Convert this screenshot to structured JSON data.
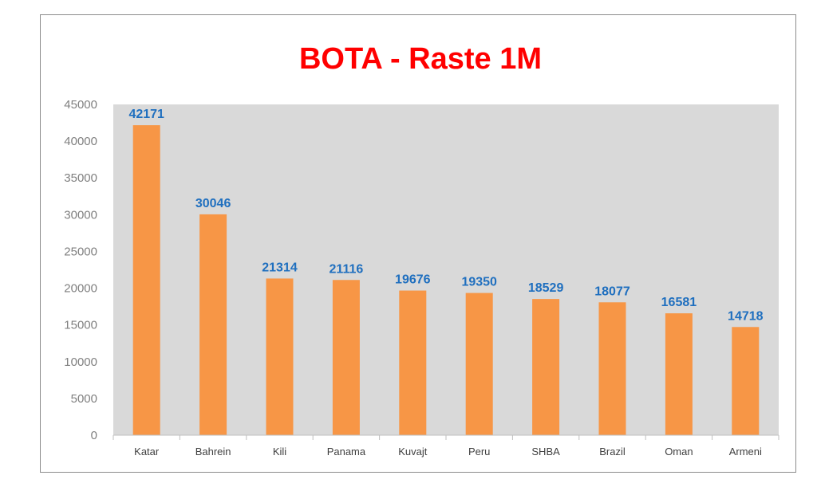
{
  "chart_data": {
    "type": "bar",
    "title": "BOTA - Raste 1M",
    "xlabel": "",
    "ylabel": "",
    "categories": [
      "Katar",
      "Bahrein",
      "Kili",
      "Panama",
      "Kuvajt",
      "Peru",
      "SHBA",
      "Brazil",
      "Oman",
      "Armeni"
    ],
    "values": [
      42171,
      30046,
      21314,
      21116,
      19676,
      19350,
      18529,
      18077,
      16581,
      14718
    ],
    "ylim": [
      0,
      45000
    ],
    "yticks": [
      "0",
      "5000",
      "10000",
      "15000",
      "20000",
      "25000",
      "30000",
      "35000",
      "40000",
      "45000"
    ],
    "data_labels_shown": true,
    "grid": false,
    "legend": "none"
  },
  "colors": {
    "bar": "#f79646",
    "plot_background": "#d9d9d9",
    "title": "#ff0000",
    "data_label": "#1f6fbf",
    "axis_text": "#7f7f7f"
  }
}
